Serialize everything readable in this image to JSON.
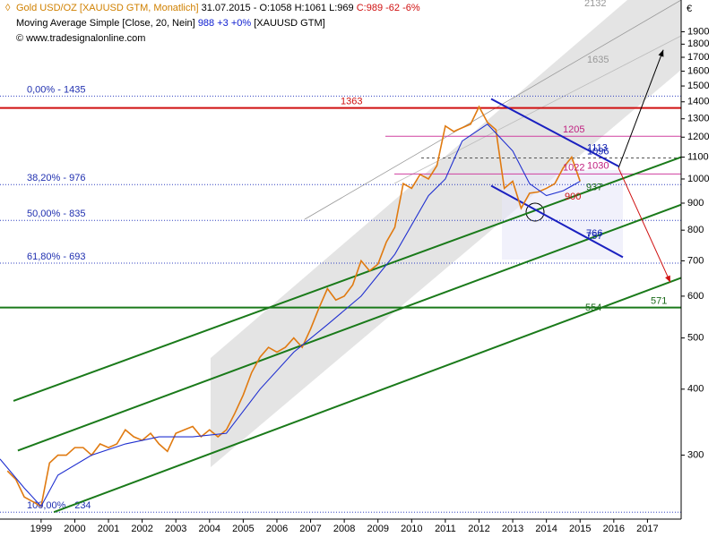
{
  "chart_data": {
    "type": "line",
    "header": {
      "name": "Gold USD/OZ [XAUUSD GTM, Monatlich]",
      "date": "31.07.2015",
      "ohlc": "- O:1058 H:1061 L:969",
      "close": "C:989 -62 -6%",
      "indicator": "Moving Average Simple [Close, 20, Nein]",
      "indicator_values": "988 +3 +0%",
      "indicator_source": "[XAUUSD GTM]",
      "copyright": "© www.tradesignalonline.com",
      "currency": "€"
    },
    "log_scale": true,
    "xlim": [
      1998.28,
      2018.5
    ],
    "ylim": [
      227,
      2140
    ],
    "xticks": [
      {
        "value": 1999.5,
        "label": "1999"
      },
      {
        "value": 2000.5,
        "label": "2000"
      },
      {
        "value": 2001.5,
        "label": "2001"
      },
      {
        "value": 2002.5,
        "label": "2002"
      },
      {
        "value": 2003.5,
        "label": "2003"
      },
      {
        "value": 2004.5,
        "label": "2004"
      },
      {
        "value": 2005.5,
        "label": "2005"
      },
      {
        "value": 2006.5,
        "label": "2006"
      },
      {
        "value": 2007.5,
        "label": "2007"
      },
      {
        "value": 2008.5,
        "label": "2008"
      },
      {
        "value": 2009.5,
        "label": "2009"
      },
      {
        "value": 2010.5,
        "label": "2010"
      },
      {
        "value": 2011.5,
        "label": "2011"
      },
      {
        "value": 2012.5,
        "label": "2012"
      },
      {
        "value": 2013.5,
        "label": "2013"
      },
      {
        "value": 2014.5,
        "label": "2014"
      },
      {
        "value": 2015.5,
        "label": "2015"
      },
      {
        "value": 2016.5,
        "label": "2016"
      },
      {
        "value": 2017.5,
        "label": "2017"
      }
    ],
    "yticks": [
      300,
      400,
      500,
      600,
      700,
      800,
      900,
      1000,
      1100,
      1200,
      1300,
      1400,
      1500,
      1600,
      1700,
      1800,
      1900
    ],
    "x": [
      1998.5,
      1998.75,
      1999.0,
      1999.25,
      1999.5,
      1999.75,
      2000.0,
      2000.25,
      2000.5,
      2000.75,
      2001.0,
      2001.25,
      2001.5,
      2001.75,
      2002.0,
      2002.25,
      2002.5,
      2002.75,
      2003.0,
      2003.25,
      2003.5,
      2003.75,
      2004.0,
      2004.25,
      2004.5,
      2004.75,
      2005.0,
      2005.25,
      2005.5,
      2005.75,
      2006.0,
      2006.25,
      2006.5,
      2006.75,
      2007.0,
      2007.25,
      2007.5,
      2007.75,
      2008.0,
      2008.25,
      2008.5,
      2008.75,
      2009.0,
      2009.25,
      2009.5,
      2009.75,
      2010.0,
      2010.25,
      2010.5,
      2010.75,
      2011.0,
      2011.25,
      2011.5,
      2011.75,
      2012.0,
      2012.25,
      2012.5,
      2012.75,
      2013.0,
      2013.25,
      2013.5,
      2013.75,
      2014.0,
      2014.25,
      2014.5,
      2014.75,
      2015.0,
      2015.25,
      2015.5
    ],
    "series": [
      {
        "name": "Gold USD/OZ",
        "color": "#e07a10",
        "values": [
          280,
          270,
          250,
          245,
          240,
          290,
          300,
          300,
          310,
          310,
          300,
          315,
          310,
          315,
          335,
          325,
          320,
          330,
          315,
          305,
          330,
          335,
          340,
          325,
          335,
          325,
          335,
          360,
          390,
          430,
          460,
          480,
          470,
          480,
          500,
          480,
          520,
          570,
          620,
          590,
          600,
          630,
          700,
          670,
          690,
          760,
          810,
          980,
          960,
          1020,
          1000,
          1060,
          1260,
          1230,
          1250,
          1270,
          1370,
          1280,
          1240,
          960,
          990,
          880,
          940,
          945,
          960,
          980,
          1050,
          1100,
          990
        ]
      },
      {
        "name": "Moving Average Simple",
        "color": "#2030d0",
        "x": [
          1998.28,
          1999.0,
          1999.5,
          2000.0,
          2001.0,
          2002.0,
          2003.0,
          2004.0,
          2005.0,
          2006.0,
          2007.0,
          2008.0,
          2009.0,
          2010.0,
          2011.0,
          2011.5,
          2012.0,
          2012.75,
          2013.5,
          2014.0,
          2014.5,
          2015.0,
          2015.5
        ],
        "values": [
          295,
          260,
          240,
          275,
          300,
          315,
          325,
          325,
          330,
          400,
          470,
          530,
          600,
          720,
          930,
          1000,
          1180,
          1270,
          1130,
          980,
          930,
          950,
          990
        ]
      }
    ],
    "fib_levels": [
      {
        "label": "0,00% - 1435",
        "value": 1435
      },
      {
        "label": "38,20% - 976",
        "value": 976
      },
      {
        "label": "50,00% - 835",
        "value": 835
      },
      {
        "label": "61,80% - 693",
        "value": 693
      },
      {
        "label": "100,00% - 234",
        "value": 234
      }
    ],
    "price_labels": [
      1363,
      1205,
      1113,
      1096,
      1022,
      1030,
      937,
      900,
      766,
      757,
      571,
      554,
      1635,
      2132
    ],
    "trend_lines": [
      {
        "x": [
          1998.68,
          2018.5
        ],
        "y": [
          380,
          1100
        ],
        "color": "#1a7a1a"
      },
      {
        "x": [
          1998.81,
          2018.5
        ],
        "y": [
          306,
          894
        ],
        "color": "#1a7a1a"
      },
      {
        "x": [
          1999.88,
          2018.5
        ],
        "y": [
          234,
          650
        ],
        "color": "#1a7a1a"
      },
      {
        "x": [
          2012.86,
          2016.64
        ],
        "y": [
          1418,
          1057
        ],
        "color": "#1a20c0"
      },
      {
        "x": [
          2012.86,
          2016.77
        ],
        "y": [
          971,
          711
        ],
        "color": "#1a20c0"
      }
    ],
    "arrows": [
      {
        "x": [
          2016.64,
          2017.97
        ],
        "y": [
          1049,
          1756
        ],
        "color": "#000000"
      },
      {
        "x": [
          2016.64,
          2018.18
        ],
        "y": [
          1049,
          637
        ],
        "color": "#d01010"
      }
    ]
  }
}
